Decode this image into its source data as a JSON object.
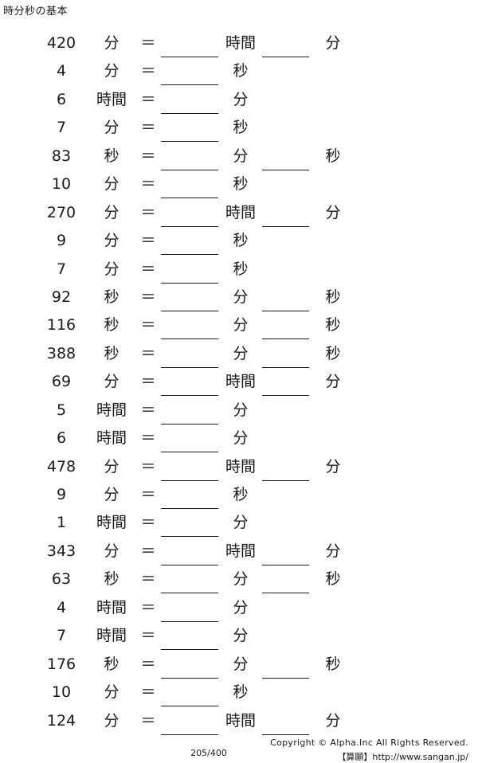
{
  "header": {
    "title": "時分秒の基本"
  },
  "rows": [
    {
      "num": "420",
      "unit1": "分",
      "eq": "＝",
      "unit2": "時間",
      "unit3": "分"
    },
    {
      "num": "4",
      "unit1": "分",
      "eq": "＝",
      "unit2": "秒",
      "unit3": ""
    },
    {
      "num": "6",
      "unit1": "時間",
      "eq": "＝",
      "unit2": "分",
      "unit3": ""
    },
    {
      "num": "7",
      "unit1": "分",
      "eq": "＝",
      "unit2": "秒",
      "unit3": ""
    },
    {
      "num": "83",
      "unit1": "秒",
      "eq": "＝",
      "unit2": "分",
      "unit3": "秒"
    },
    {
      "num": "10",
      "unit1": "分",
      "eq": "＝",
      "unit2": "秒",
      "unit3": ""
    },
    {
      "num": "270",
      "unit1": "分",
      "eq": "＝",
      "unit2": "時間",
      "unit3": "分"
    },
    {
      "num": "9",
      "unit1": "分",
      "eq": "＝",
      "unit2": "秒",
      "unit3": ""
    },
    {
      "num": "7",
      "unit1": "分",
      "eq": "＝",
      "unit2": "秒",
      "unit3": ""
    },
    {
      "num": "92",
      "unit1": "秒",
      "eq": "＝",
      "unit2": "分",
      "unit3": "秒"
    },
    {
      "num": "116",
      "unit1": "秒",
      "eq": "＝",
      "unit2": "分",
      "unit3": "秒"
    },
    {
      "num": "388",
      "unit1": "秒",
      "eq": "＝",
      "unit2": "分",
      "unit3": "秒"
    },
    {
      "num": "69",
      "unit1": "分",
      "eq": "＝",
      "unit2": "時間",
      "unit3": "分"
    },
    {
      "num": "5",
      "unit1": "時間",
      "eq": "＝",
      "unit2": "分",
      "unit3": ""
    },
    {
      "num": "6",
      "unit1": "時間",
      "eq": "＝",
      "unit2": "分",
      "unit3": ""
    },
    {
      "num": "478",
      "unit1": "分",
      "eq": "＝",
      "unit2": "時間",
      "unit3": "分"
    },
    {
      "num": "9",
      "unit1": "分",
      "eq": "＝",
      "unit2": "秒",
      "unit3": ""
    },
    {
      "num": "1",
      "unit1": "時間",
      "eq": "＝",
      "unit2": "分",
      "unit3": ""
    },
    {
      "num": "343",
      "unit1": "分",
      "eq": "＝",
      "unit2": "時間",
      "unit3": "分"
    },
    {
      "num": "63",
      "unit1": "秒",
      "eq": "＝",
      "unit2": "分",
      "unit3": "秒"
    },
    {
      "num": "4",
      "unit1": "時間",
      "eq": "＝",
      "unit2": "分",
      "unit3": ""
    },
    {
      "num": "7",
      "unit1": "時間",
      "eq": "＝",
      "unit2": "分",
      "unit3": ""
    },
    {
      "num": "176",
      "unit1": "秒",
      "eq": "＝",
      "unit2": "分",
      "unit3": "秒"
    },
    {
      "num": "10",
      "unit1": "分",
      "eq": "＝",
      "unit2": "秒",
      "unit3": ""
    },
    {
      "num": "124",
      "unit1": "分",
      "eq": "＝",
      "unit2": "時間",
      "unit3": "分"
    }
  ],
  "footer": {
    "copyright": "Copyright © Alpha.Inc All Rights Reserved.",
    "site": "【算願】http://www.sangan.jp/",
    "page": "205/400"
  }
}
